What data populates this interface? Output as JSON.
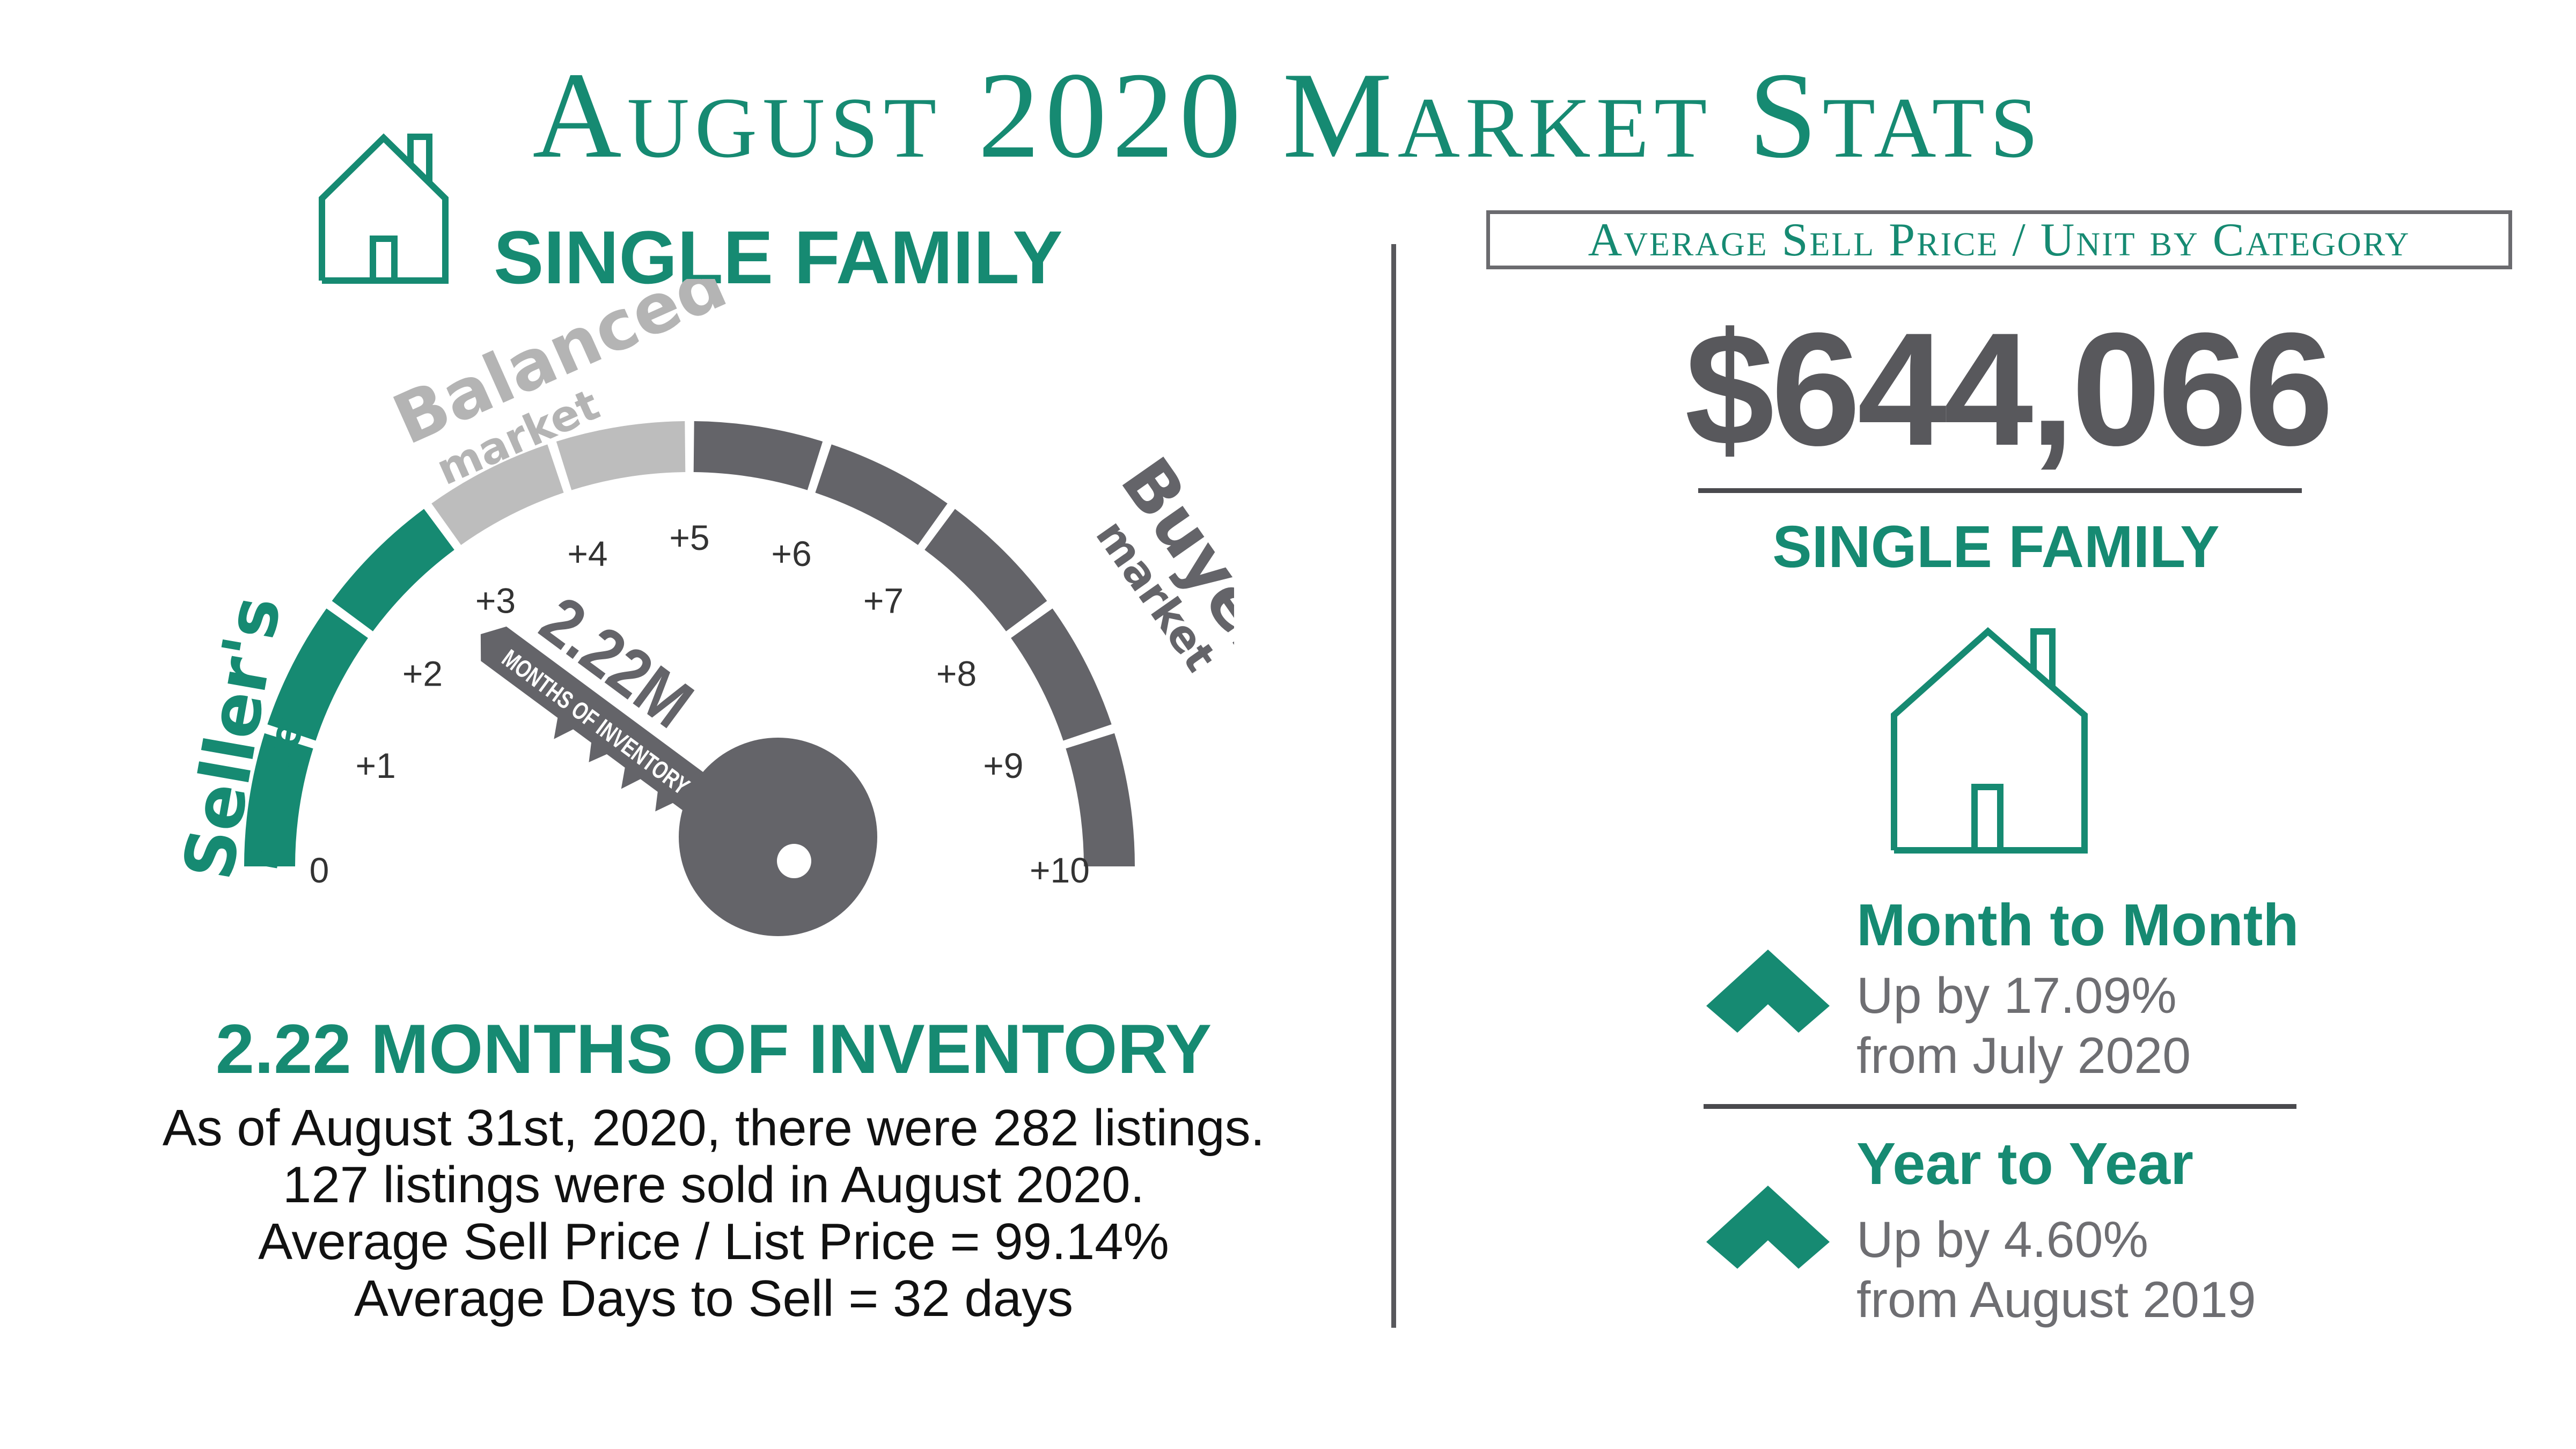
{
  "title": "August 2020 Market Stats",
  "left": {
    "category": "SINGLE FAMILY",
    "gauge": {
      "ticks": [
        "0",
        "+1",
        "+2",
        "+3",
        "+4",
        "+5",
        "+6",
        "+7",
        "+8",
        "+9",
        "+10"
      ],
      "sellers_label": "Seller's",
      "sellers_sub": "market",
      "balanced_label": "Balanced",
      "balanced_sub": "market",
      "buyers_label": "Buyer's",
      "buyers_sub": "market",
      "key_value": "2.22M",
      "key_caption": "MONTHS OF INVENTORY",
      "value": 2.22,
      "colors": {
        "sellers": "#168a72",
        "balanced": "#bdbdbd",
        "buyers": "#646469"
      }
    },
    "inventory_heading": "2.22 MONTHS OF INVENTORY",
    "description": [
      "As of August 31st, 2020, there were 282 listings.",
      "127 listings were sold in August 2020.",
      "Average Sell Price / List Price = 99.14%",
      "Average Days to Sell = 32 days"
    ]
  },
  "right": {
    "box_label": "Average Sell Price / Unit by Category",
    "price": "$644,066",
    "category": "SINGLE FAMILY",
    "month": {
      "heading": "Month to Month",
      "line1": "Up by 17.09%",
      "line2": "from July 2020"
    },
    "year": {
      "heading": "Year to Year",
      "line1": "Up by 4.60%",
      "line2": "from August 2019"
    }
  },
  "colors": {
    "accent": "#168a72",
    "gray": "#646469",
    "text": "#111111"
  }
}
